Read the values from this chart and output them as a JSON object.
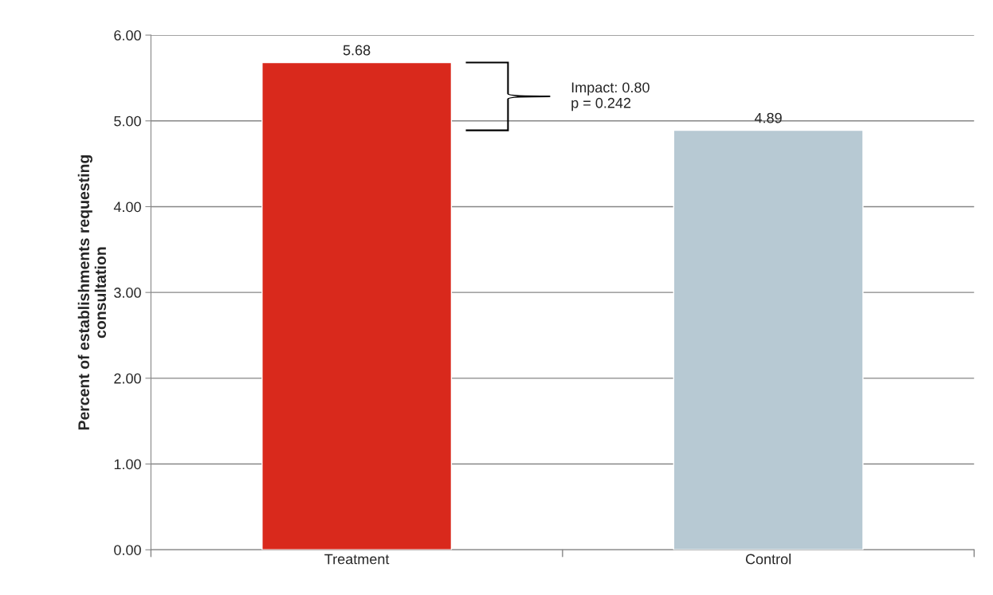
{
  "chart_data": {
    "type": "bar",
    "ylabel": "Percent of establishments requesting\nconsultation",
    "categories": [
      "Treatment",
      "Control"
    ],
    "values": [
      5.68,
      4.89
    ],
    "colors": [
      "#d9291c",
      "#b7c9d3"
    ],
    "ylim": [
      0,
      6
    ],
    "yticks": [
      {
        "value": 0,
        "label": "0.00"
      },
      {
        "value": 1,
        "label": "1.00"
      },
      {
        "value": 2,
        "label": "2.00"
      },
      {
        "value": 3,
        "label": "3.00"
      },
      {
        "value": 4,
        "label": "4.00"
      },
      {
        "value": 5,
        "label": "5.00"
      },
      {
        "value": 6,
        "label": "6.00"
      }
    ],
    "grid": "y",
    "data_labels": true,
    "legend": false,
    "annotations": [
      "Impact: 0.80\np = 0.242"
    ]
  }
}
